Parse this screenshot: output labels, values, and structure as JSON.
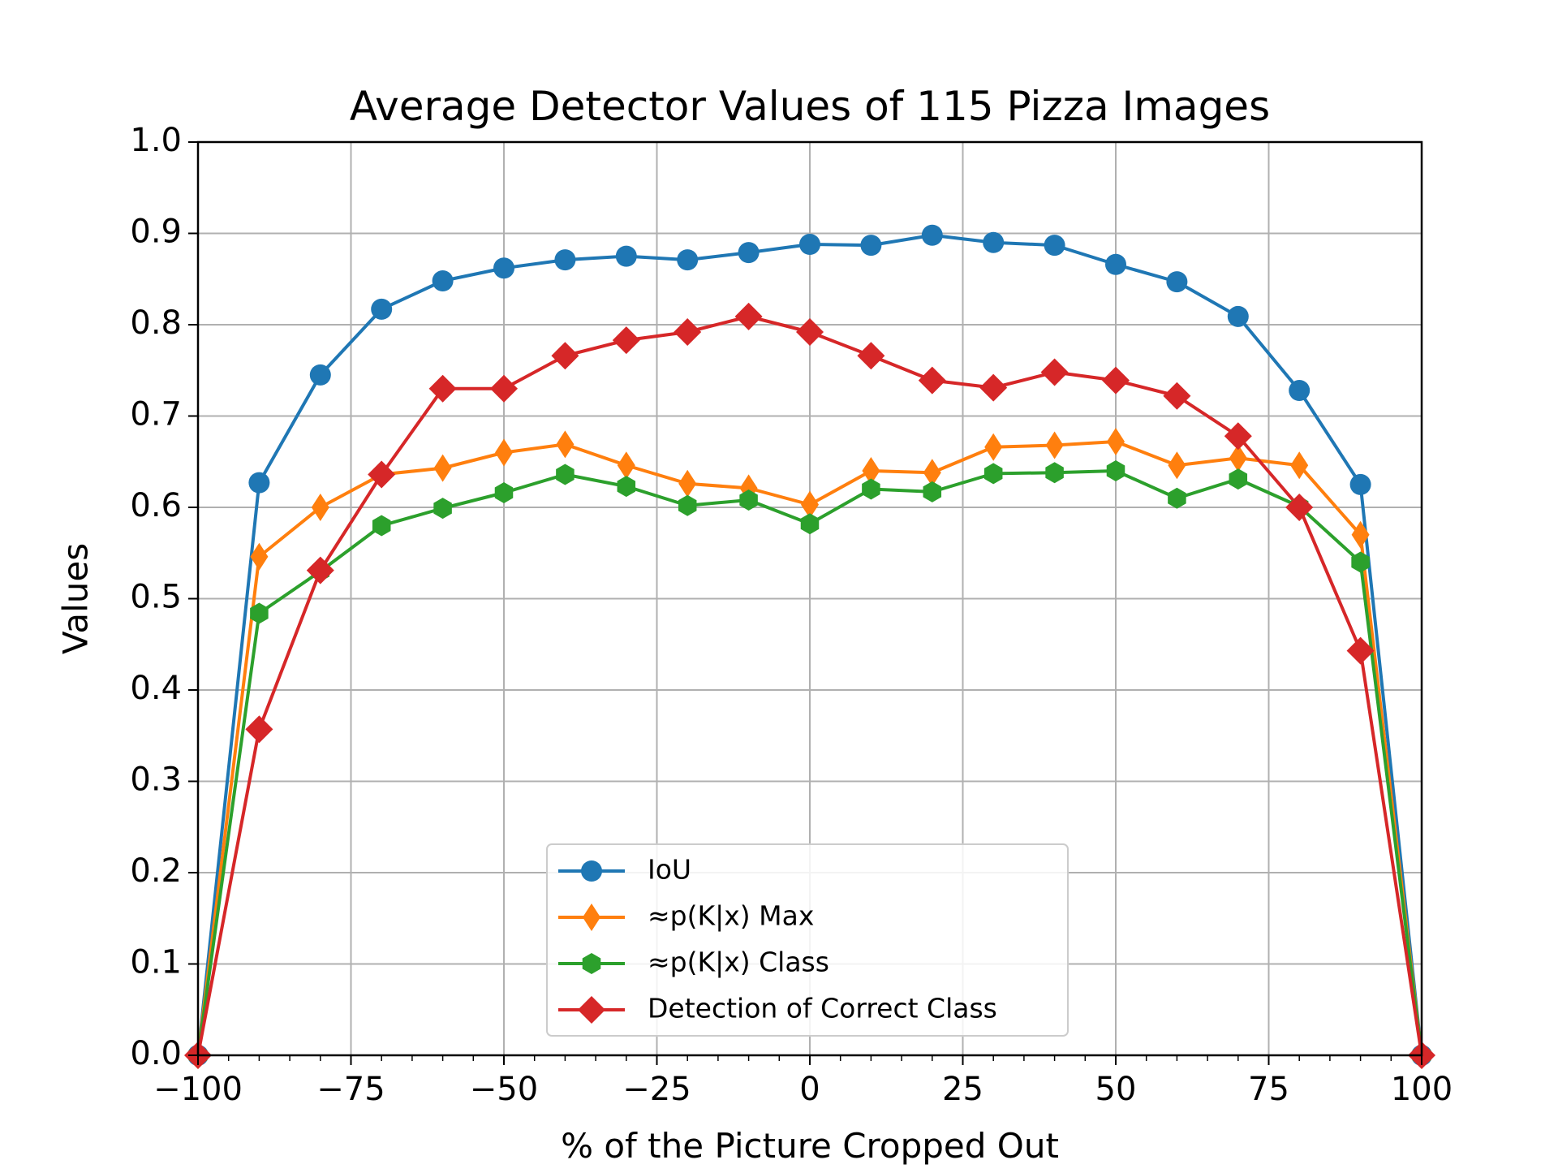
{
  "chart_data": {
    "type": "line",
    "title": "Average Detector Values of 115 Pizza Images",
    "xlabel": "% of the Picture Cropped Out",
    "ylabel": "Values",
    "xlim": [
      -100,
      100
    ],
    "ylim": [
      0.0,
      1.0
    ],
    "xticks": [
      -100,
      -75,
      -50,
      -25,
      0,
      25,
      50,
      75,
      100
    ],
    "xtick_labels": [
      "−100",
      "−75",
      "−50",
      "−25",
      "0",
      "25",
      "50",
      "75",
      "100"
    ],
    "yticks": [
      0.0,
      0.1,
      0.2,
      0.3,
      0.4,
      0.5,
      0.6,
      0.7,
      0.8,
      0.9,
      1.0
    ],
    "ytick_labels": [
      "0.0",
      "0.1",
      "0.2",
      "0.3",
      "0.4",
      "0.5",
      "0.6",
      "0.7",
      "0.8",
      "0.9",
      "1.0"
    ],
    "grid": true,
    "legend_position": "lower-center",
    "x": [
      -100,
      -90,
      -80,
      -70,
      -60,
      -50,
      -40,
      -30,
      -20,
      -10,
      0,
      10,
      20,
      30,
      40,
      50,
      60,
      70,
      80,
      90,
      100
    ],
    "series": [
      {
        "name": "IoU",
        "color": "#1f77b4",
        "marker": "circle",
        "values": [
          0.0,
          0.627,
          0.745,
          0.817,
          0.848,
          0.862,
          0.871,
          0.875,
          0.871,
          0.879,
          0.888,
          0.887,
          0.898,
          0.89,
          0.887,
          0.866,
          0.847,
          0.809,
          0.728,
          0.625,
          0.0
        ]
      },
      {
        "name": "≈p(K|x) Max",
        "color": "#ff7f0e",
        "marker": "thin-diamond",
        "values": [
          0.0,
          0.546,
          0.6,
          0.636,
          0.643,
          0.66,
          0.669,
          0.646,
          0.626,
          0.621,
          0.603,
          0.64,
          0.638,
          0.666,
          0.668,
          0.672,
          0.646,
          0.654,
          0.646,
          0.57,
          0.0
        ]
      },
      {
        "name": "≈p(K|x) Class",
        "color": "#2ca02c",
        "marker": "hexagon",
        "values": [
          0.0,
          0.484,
          0.53,
          0.58,
          0.599,
          0.616,
          0.636,
          0.623,
          0.602,
          0.608,
          0.582,
          0.62,
          0.617,
          0.637,
          0.638,
          0.64,
          0.61,
          0.631,
          0.601,
          0.54,
          0.0
        ]
      },
      {
        "name": "Detection of Correct Class",
        "color": "#d62728",
        "marker": "diamond",
        "values": [
          0.0,
          0.357,
          0.531,
          0.636,
          0.73,
          0.73,
          0.766,
          0.783,
          0.792,
          0.809,
          0.792,
          0.766,
          0.739,
          0.731,
          0.748,
          0.739,
          0.722,
          0.678,
          0.6,
          0.443,
          0.0
        ]
      }
    ]
  }
}
